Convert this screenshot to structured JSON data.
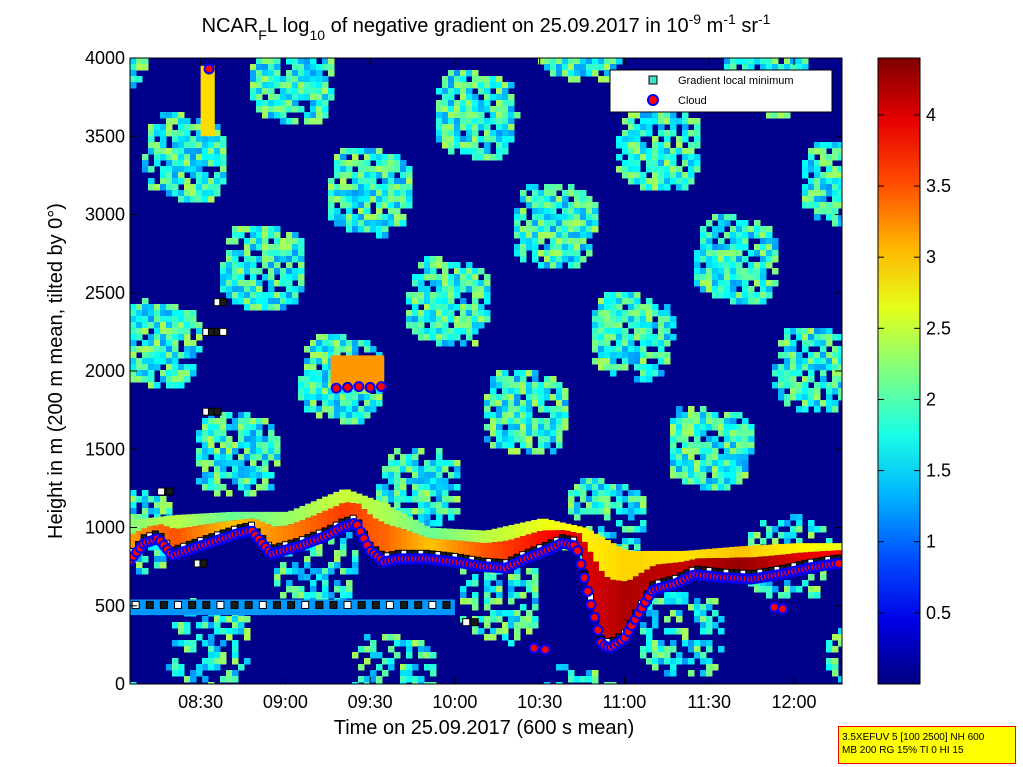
{
  "chart_data": {
    "type": "heatmap",
    "title": "NCAR_F L log10 of negative gradient on 25.09.2017 in 10^-9 m^-1 sr^-1",
    "title_parts": {
      "p1": "NCAR",
      "sub1": "F",
      "p2": "L log",
      "sub2": "10",
      "p3": " of negative gradient on 25.09.2017 in 10",
      "sup1": "-9",
      "p4": " m",
      "sup2": "-1",
      "p5": " sr",
      "sup3": "-1"
    },
    "xlabel": "Time on 25.09.2017 (600 s mean)",
    "ylabel": "Height in m (200 m mean, tilted by 0°)",
    "x_ticks": [
      "08:30",
      "09:00",
      "09:30",
      "10:00",
      "10:30",
      "11:00",
      "11:30",
      "12:00"
    ],
    "x_tick_minutes": [
      510,
      540,
      570,
      600,
      630,
      660,
      690,
      720
    ],
    "xlim_minutes": [
      485,
      737
    ],
    "y_ticks": [
      0,
      500,
      1000,
      1500,
      2000,
      2500,
      3000,
      3500,
      4000
    ],
    "ylim": [
      0,
      4000
    ],
    "colorbar": {
      "ticks": [
        0.5,
        1,
        1.5,
        2,
        2.5,
        3,
        3.5,
        4
      ],
      "range": [
        0,
        4.4
      ],
      "colormap": "jet"
    },
    "legend": {
      "placement": "top-right",
      "entries": [
        {
          "label": "Gradient local minimum",
          "marker": "square",
          "color": "#40e0d0"
        },
        {
          "label": "Cloud",
          "marker": "circle",
          "color": "#ff0000",
          "edge": "#0000ff"
        }
      ]
    },
    "background_level": 0.05,
    "cloud_base": {
      "time_minutes": [
        485,
        490,
        495,
        500,
        508,
        523,
        528,
        535,
        545,
        555,
        560,
        565,
        570,
        575,
        580,
        590,
        600,
        610,
        618,
        625,
        632,
        638,
        643,
        648,
        652,
        655,
        660,
        665,
        670,
        678,
        685,
        695,
        705,
        715,
        725,
        735
      ],
      "height_m": [
        790,
        900,
        930,
        820,
        870,
        960,
        980,
        830,
        880,
        950,
        1000,
        1030,
        850,
        780,
        800,
        800,
        780,
        750,
        740,
        800,
        850,
        900,
        880,
        520,
        250,
        230,
        290,
        450,
        600,
        640,
        700,
        680,
        670,
        700,
        740,
        770
      ]
    },
    "aloft_clouds": [
      {
        "time_minutes": [
          558,
          562,
          566,
          570,
          574
        ],
        "height_m": [
          1890,
          1895,
          1900,
          1895,
          1900
        ]
      },
      {
        "time_minutes": [
          713,
          716
        ],
        "height_m": [
          490,
          480
        ]
      },
      {
        "time_minutes": [
          513
        ],
        "height_m": [
          3930
        ]
      },
      {
        "time_minutes": [
          628,
          632
        ],
        "height_m": [
          230,
          220
        ]
      }
    ],
    "cloud_layer": {
      "time_minutes": [
        485,
        500,
        520,
        540,
        560,
        575,
        590,
        610,
        630,
        645,
        660,
        680,
        700,
        720,
        737
      ],
      "top_m": [
        1050,
        1080,
        1100,
        1100,
        1250,
        1150,
        1000,
        980,
        1060,
        1000,
        850,
        850,
        880,
        900,
        900
      ],
      "value": [
        3.2,
        3.5,
        3.0,
        3.3,
        3.6,
        3.4,
        3.0,
        3.5,
        3.8,
        4.0,
        4.2,
        4.1,
        4.3,
        4.0,
        3.8
      ]
    },
    "aloft_layers": [
      {
        "time_minutes": [
          556,
          575
        ],
        "bottom_m": 1880,
        "top_m": 2100,
        "value": 3.2
      },
      {
        "time_minutes": [
          510,
          515
        ],
        "bottom_m": 3500,
        "top_m": 3950,
        "value": 2.9
      }
    ],
    "boundary_layer": {
      "time_minutes": [
        485,
        600
      ],
      "bottom_m": 440,
      "top_m": 540,
      "value": 1.2
    },
    "gradient_minima": [
      {
        "time_minutes": [
          487,
          492,
          497,
          502,
          507,
          512,
          517,
          522,
          527,
          532,
          537,
          542,
          547,
          552,
          557,
          562,
          567,
          572,
          577,
          582,
          587,
          592,
          597
        ],
        "height_m": 505
      },
      {
        "time_minutes": [
          604,
          607
        ],
        "height_m": 395
      },
      {
        "time_minutes": [
          512,
          514,
          516,
          518
        ],
        "height_m": 2250
      },
      {
        "time_minutes": [
          512,
          514,
          516
        ],
        "height_m": 1740
      },
      {
        "time_minutes": [
          516,
          518
        ],
        "height_m": 2440
      },
      {
        "time_minutes": [
          496,
          499
        ],
        "height_m": 1230
      },
      {
        "time_minutes": [
          509,
          511
        ],
        "height_m": 770
      }
    ],
    "noise_seed": 17
  },
  "settings_box": {
    "line1": "3.5XEFUV 5 [100 2500] NH 600",
    "line2": "MB 200 RG 15% TI 0 HI 15"
  }
}
